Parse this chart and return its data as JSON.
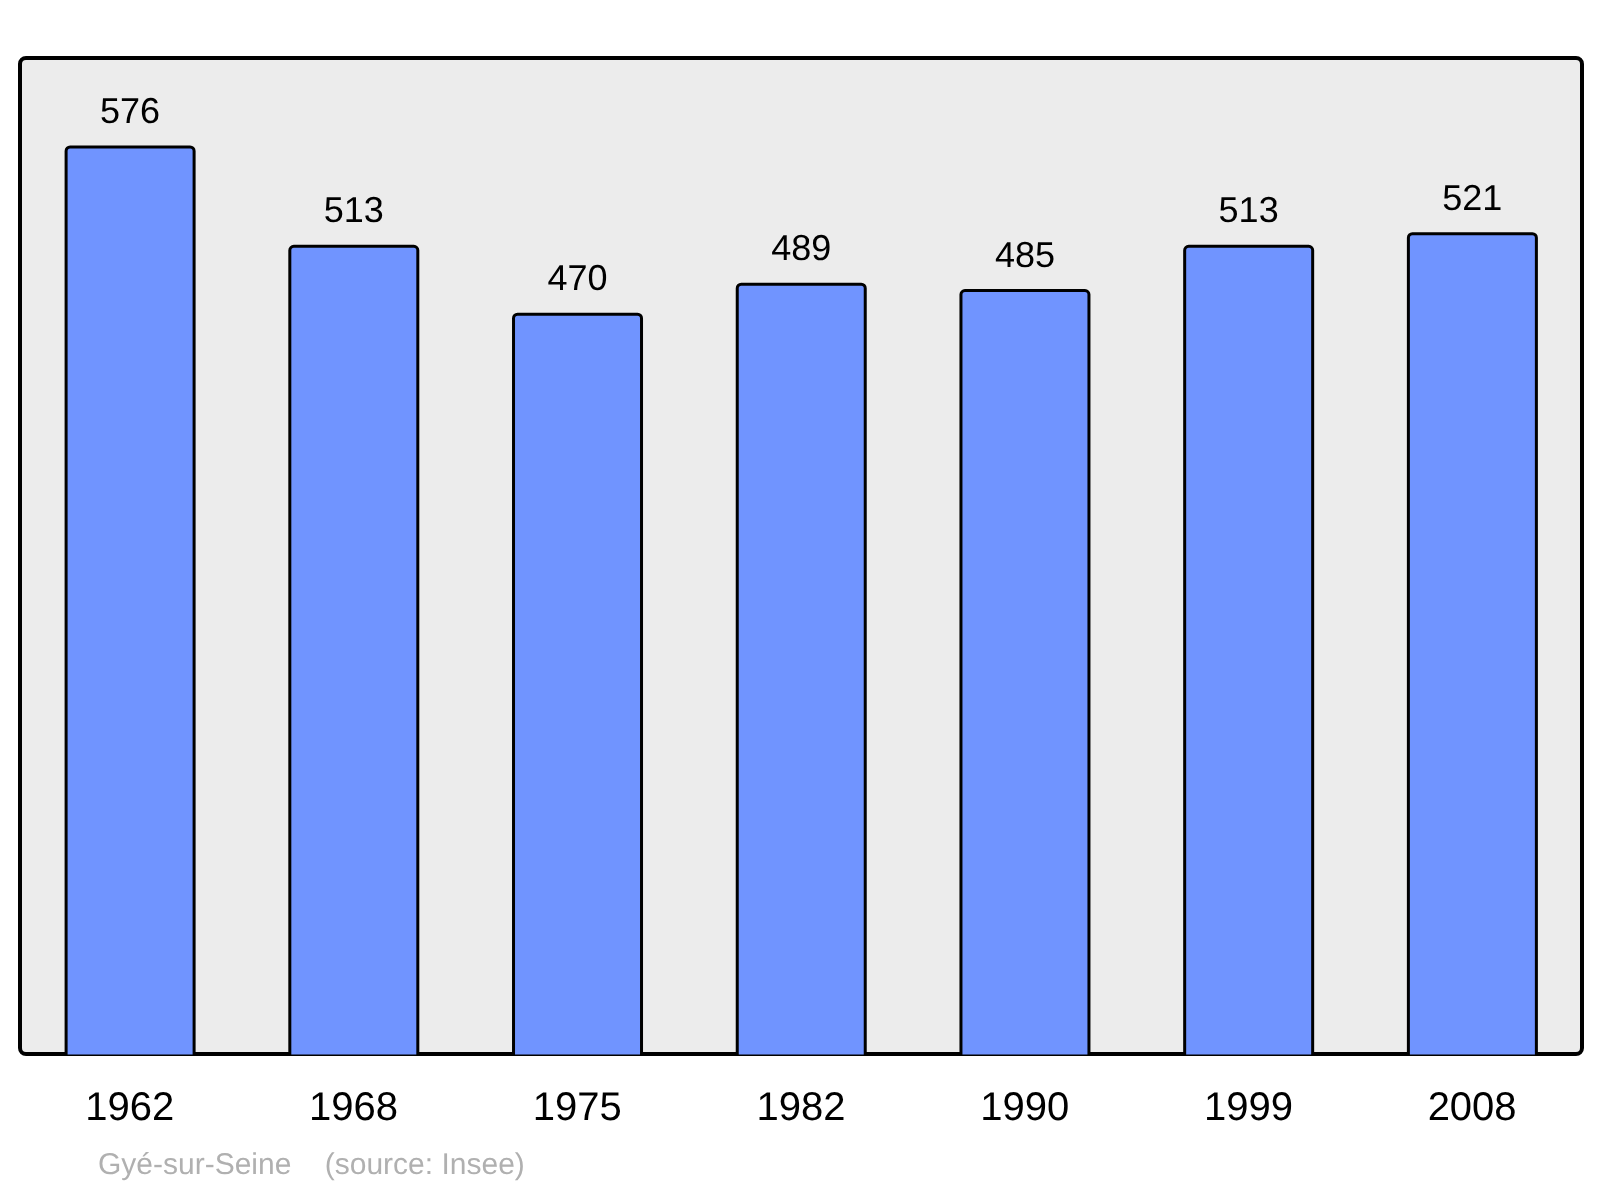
{
  "chart_data": {
    "type": "bar",
    "categories": [
      "1962",
      "1968",
      "1975",
      "1982",
      "1990",
      "1999",
      "2008"
    ],
    "values": [
      576,
      513,
      470,
      489,
      485,
      513,
      521
    ],
    "color": "#7094ff",
    "data_labels": true,
    "grid": false,
    "annotations": [
      "Gyé-sur-Seine    (source: Insee)"
    ]
  }
}
